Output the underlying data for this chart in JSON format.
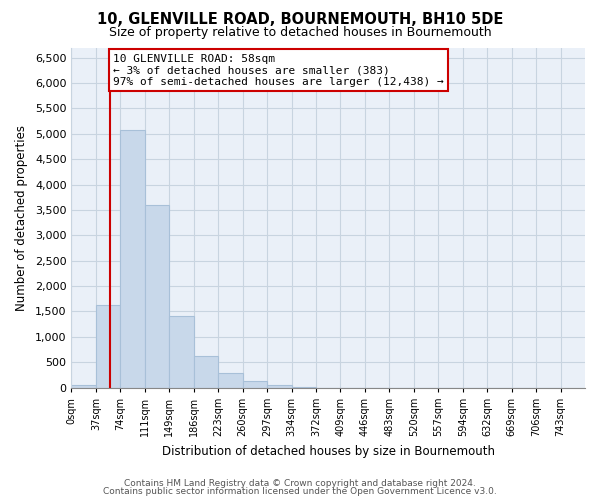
{
  "title": "10, GLENVILLE ROAD, BOURNEMOUTH, BH10 5DE",
  "subtitle": "Size of property relative to detached houses in Bournemouth",
  "xlabel": "Distribution of detached houses by size in Bournemouth",
  "ylabel": "Number of detached properties",
  "bar_color": "#c8d8ea",
  "bar_edge_color": "#a8c0d8",
  "plot_bg_color": "#eaf0f8",
  "bin_labels": [
    "0sqm",
    "37sqm",
    "74sqm",
    "111sqm",
    "149sqm",
    "186sqm",
    "223sqm",
    "260sqm",
    "297sqm",
    "334sqm",
    "372sqm",
    "409sqm",
    "446sqm",
    "483sqm",
    "520sqm",
    "557sqm",
    "594sqm",
    "632sqm",
    "669sqm",
    "706sqm",
    "743sqm"
  ],
  "bar_values": [
    50,
    1620,
    5080,
    3600,
    1420,
    620,
    290,
    130,
    50,
    10,
    0,
    0,
    0,
    0,
    0,
    0,
    0,
    0,
    0,
    0
  ],
  "ylim": [
    0,
    6700
  ],
  "yticks": [
    0,
    500,
    1000,
    1500,
    2000,
    2500,
    3000,
    3500,
    4000,
    4500,
    5000,
    5500,
    6000,
    6500
  ],
  "property_line_x": 58,
  "property_line_color": "#cc0000",
  "annotation_title": "10 GLENVILLE ROAD: 58sqm",
  "annotation_line2": "← 3% of detached houses are smaller (383)",
  "annotation_line3": "97% of semi-detached houses are larger (12,438) →",
  "annotation_box_color": "#ffffff",
  "annotation_box_edge": "#cc0000",
  "footer_line1": "Contains HM Land Registry data © Crown copyright and database right 2024.",
  "footer_line2": "Contains public sector information licensed under the Open Government Licence v3.0.",
  "background_color": "#ffffff",
  "grid_color": "#c8d4e0",
  "bin_width": 37,
  "n_bars": 20
}
